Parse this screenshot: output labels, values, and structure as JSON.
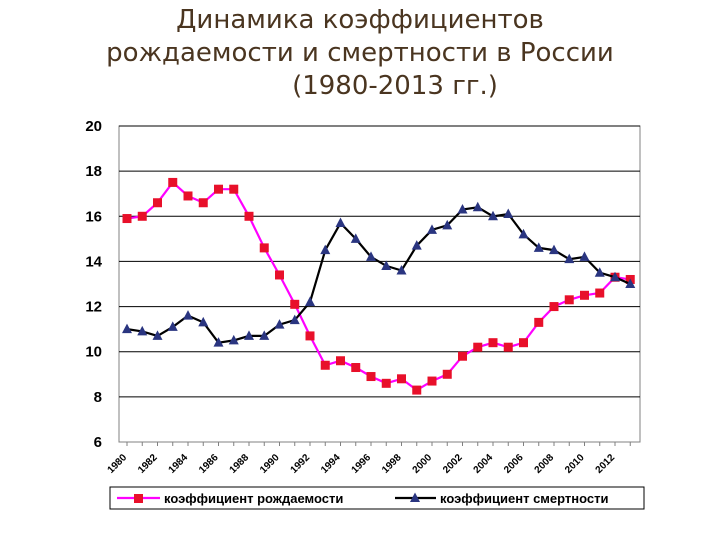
{
  "title_lines": [
    "Динамика коэффициентов",
    "рождаемости и смертности в России",
    "(1980-2013 гг.)"
  ],
  "chart_data": {
    "type": "line",
    "title": "Динамика коэффициентов рождаемости и смертности в России (1980-2013 гг.)",
    "x": [
      1980,
      1981,
      1982,
      1983,
      1984,
      1985,
      1986,
      1987,
      1988,
      1989,
      1990,
      1991,
      1992,
      1993,
      1994,
      1995,
      1996,
      1997,
      1998,
      1999,
      2000,
      2001,
      2002,
      2003,
      2004,
      2005,
      2006,
      2007,
      2008,
      2009,
      2010,
      2011,
      2012,
      2013
    ],
    "xticks": [
      "1980",
      "1982",
      "1984",
      "1986",
      "1988",
      "1990",
      "1992",
      "1994",
      "1996",
      "1998",
      "2000",
      "2002",
      "2004",
      "2006",
      "2008",
      "2010",
      "2012"
    ],
    "yticks": [
      "20",
      "18",
      "16",
      "14",
      "12",
      "10",
      "8",
      "6"
    ],
    "ylim": [
      6,
      20
    ],
    "grid": true,
    "legend_position": "bottom",
    "series": [
      {
        "name": "коэффициент рождаемости",
        "color": "#ff00ff",
        "marker": "square",
        "marker_color": "#e8102a",
        "values": [
          15.9,
          16.0,
          16.6,
          17.5,
          16.9,
          16.6,
          17.2,
          17.2,
          16.0,
          14.6,
          13.4,
          12.1,
          10.7,
          9.4,
          9.6,
          9.3,
          8.9,
          8.6,
          8.8,
          8.3,
          8.7,
          9.0,
          9.8,
          10.2,
          10.4,
          10.2,
          10.4,
          11.3,
          12.0,
          12.3,
          12.5,
          12.6,
          13.3,
          13.2
        ]
      },
      {
        "name": "коэффициент смертности",
        "color": "#000000",
        "marker": "triangle",
        "marker_color": "#2a3580",
        "values": [
          11.0,
          10.9,
          10.7,
          11.1,
          11.6,
          11.3,
          10.4,
          10.5,
          10.7,
          10.7,
          11.2,
          11.4,
          12.2,
          14.5,
          15.7,
          15.0,
          14.2,
          13.8,
          13.6,
          14.7,
          15.4,
          15.6,
          16.3,
          16.4,
          16.0,
          16.1,
          15.2,
          14.6,
          14.5,
          14.1,
          14.2,
          13.5,
          13.3,
          13.0
        ]
      }
    ]
  }
}
